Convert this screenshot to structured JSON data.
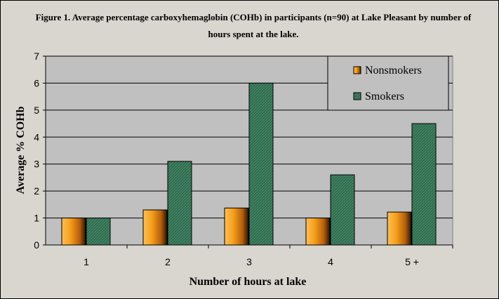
{
  "chart_data": {
    "type": "bar",
    "title": "Figure 1.  Average percentage carboxyhemaglobin (COHb) in participants (n=90) at Lake Pleasant by number of hours spent at the lake.",
    "xlabel": "Number of hours at lake",
    "ylabel": "Average % COHb",
    "categories": [
      "1",
      "2",
      "3",
      "4",
      "5 +"
    ],
    "ylim": [
      0,
      7
    ],
    "yticks": [
      "0",
      "1",
      "2",
      "3",
      "4",
      "5",
      "6",
      "7"
    ],
    "grid": true,
    "legend_position": "top-right",
    "series": [
      {
        "name": "Nonsmokers",
        "values": [
          1.0,
          1.3,
          1.37,
          1.0,
          1.22
        ],
        "color": "#f29a1e"
      },
      {
        "name": "Smokers",
        "values": [
          1.0,
          3.1,
          6.0,
          2.6,
          4.5
        ],
        "color": "#2e6b4e"
      }
    ],
    "plot_background": "#c0c0c0"
  }
}
